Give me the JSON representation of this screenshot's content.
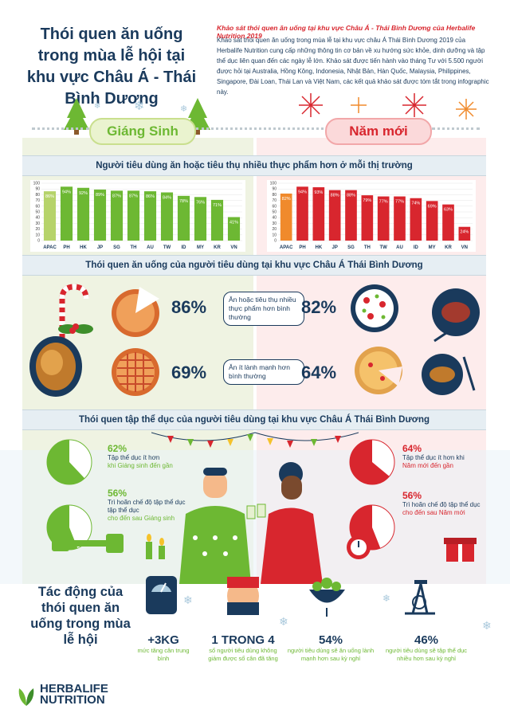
{
  "header": {
    "title": "Thói quen ăn uống trong mùa lễ hội tại khu vực Châu Á - Thái Bình Dương",
    "intro_heading": "Khảo sát thói quen ăn uống tại khu vực Châu Á - Thái Bình Dương của Herbalife Nutrition 2019",
    "intro_body": "Khảo sát thói quen ăn uống trong mùa lễ tại khu vực châu Á Thái Bình Dương 2019 của Herbalife Nutrition cung cấp những thông tin cơ bản về xu hướng sức khỏe, dinh dưỡng và tập thể dục liên quan đến các ngày lễ lớn. Khảo sát được tiến hành vào tháng Tư với 5.500 người được hỏi tại Australia, Hồng Kông, Indonesia, Nhật Bản, Hàn Quốc, Malaysia, Philippines, Singapore, Đài Loan, Thái Lan và Việt Nam, các kết quả khảo sát được tóm tắt trong infographic này."
  },
  "seasons": {
    "left": "Giáng Sinh",
    "right": "Năm mới"
  },
  "sections": {
    "consumption": "Người tiêu dùng ăn hoặc tiêu thụ nhiều thực phẩm hơn ở mỗi thị trường",
    "habits": "Thói quen ăn uống của người tiêu dùng tại khu vực Châu Á Thái Bình Dương",
    "exercise": "Thói quen tập thể dục của người tiêu dùng tại khu vực Châu Á Thái Bình Dương"
  },
  "chart_data": [
    {
      "type": "bar",
      "categories": [
        "APAC",
        "PH",
        "HK",
        "JP",
        "SG",
        "TH",
        "AU",
        "TW",
        "ID",
        "MY",
        "KR",
        "VN"
      ],
      "values": [
        86,
        94,
        92,
        89,
        87,
        87,
        86,
        84,
        78,
        76,
        71,
        41
      ],
      "labels": [
        "86%",
        "94%",
        "92%",
        "89%",
        "87%",
        "87%",
        "86%",
        "84%",
        "78%",
        "76%",
        "71%",
        "41%"
      ],
      "ylim": [
        0,
        100
      ],
      "yticks": [
        0,
        10,
        20,
        30,
        40,
        50,
        60,
        70,
        80,
        90,
        100
      ],
      "colors": {
        "first": "#b6d36a",
        "bars": "#6db833"
      }
    },
    {
      "type": "bar",
      "categories": [
        "APAC",
        "PH",
        "HK",
        "JP",
        "SG",
        "TH",
        "TW",
        "AU",
        "ID",
        "MY",
        "KR",
        "VN"
      ],
      "values": [
        82,
        94,
        93,
        88,
        88,
        79,
        77,
        77,
        74,
        69,
        63,
        24
      ],
      "labels": [
        "82%",
        "94%",
        "93%",
        "88%",
        "88%",
        "79%",
        "77%",
        "77%",
        "74%",
        "69%",
        "63%",
        "24%"
      ],
      "ylim": [
        0,
        100
      ],
      "yticks": [
        0,
        10,
        20,
        30,
        40,
        50,
        60,
        70,
        80,
        90,
        100
      ],
      "colors": {
        "first": "#f08a2c",
        "bars": "#d8262e"
      }
    }
  ],
  "habits": {
    "row1": {
      "left_pct": "86%",
      "label": "Ăn hoặc tiêu thụ nhiều thực phẩm hơn bình thường",
      "right_pct": "82%"
    },
    "row2": {
      "left_pct": "69%",
      "label": "Ăn ít lành mạnh hơn bình thường",
      "right_pct": "64%"
    }
  },
  "exercise": {
    "left": [
      {
        "pct": "62%",
        "value": 62,
        "line1": "Tập thể dục ít hơn",
        "line2": "khi Giáng sinh đến gần"
      },
      {
        "pct": "56%",
        "value": 56,
        "line1": "Trì hoãn chế độ tập thể dục",
        "line2": "cho đến sau Giáng sinh"
      }
    ],
    "right": [
      {
        "pct": "64%",
        "value": 64,
        "line1": "Tập thể dục ít hơn khi",
        "line2": "Năm mới đến gần"
      },
      {
        "pct": "56%",
        "value": 56,
        "line1": "Trì hoãn chế độ tập thể dục",
        "line2": "cho đến sau Năm mới"
      }
    ]
  },
  "impact": {
    "title": "Tác động của thói quen ăn uống trong mùa lễ hội",
    "items": [
      {
        "num": "+3KG",
        "text": "mức tăng cân trung bình",
        "icon": "scale-icon"
      },
      {
        "num": "1 TRONG 4",
        "text": "số người tiêu dùng không giảm được số cân đã tăng",
        "icon": "belly-icon"
      },
      {
        "num": "54%",
        "text": "người tiêu dùng sẽ ăn uống lành mạnh hơn sau kỳ nghỉ",
        "icon": "salad-icon"
      },
      {
        "num": "46%",
        "text": "người tiêu dùng sẽ tập thể dục nhiều hơn sau kỳ nghỉ",
        "icon": "bike-icon"
      }
    ]
  },
  "logo": {
    "line1": "HERBALIFE",
    "line2": "NUTRITION"
  }
}
